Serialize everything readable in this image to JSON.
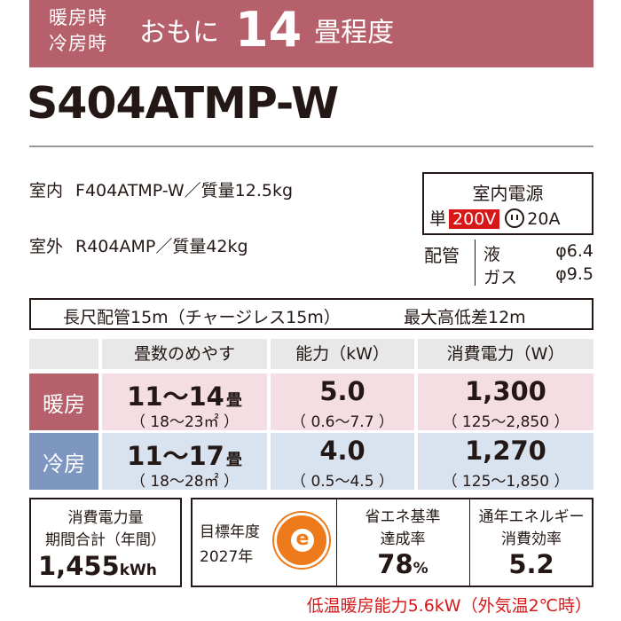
{
  "header": {
    "mode_heating": "暖房時",
    "mode_cooling": "冷房時",
    "prefix": "おもに",
    "tatami": "14",
    "suffix": "畳程度"
  },
  "model": "S404ATMP-W",
  "indoor": {
    "label": "室内",
    "value": "F404ATMP-W／質量12.5kg"
  },
  "outdoor": {
    "label": "室外",
    "value": "R404AMP／質量42kg"
  },
  "power": {
    "title": "室内電源",
    "phase": "単",
    "voltage": "200V",
    "plug_icon": "plug-icon",
    "ampere": "20A"
  },
  "piping": {
    "label": "配管",
    "liquid_label": "液",
    "liquid_value": "φ6.4",
    "gas_label": "ガス",
    "gas_value": "φ9.5"
  },
  "long_piping": {
    "text": "長尺配管15m（チャージレス15m）",
    "height": "最大高低差12m"
  },
  "table": {
    "headers": [
      "畳数のめやす",
      "能力（kW）",
      "消費電力（W）"
    ],
    "rows": [
      {
        "mode": "暖房",
        "tatami": "11～14",
        "tatami_unit": "畳",
        "tatami_area": "（ 18～23㎡ ）",
        "capacity": "5.0",
        "capacity_range": "（ 0.6～7.7 ）",
        "power": "1,300",
        "power_range": "（ 125～2,850 ）"
      },
      {
        "mode": "冷房",
        "tatami": "11～17",
        "tatami_unit": "畳",
        "tatami_area": "（ 18～28㎡ ）",
        "capacity": "4.0",
        "capacity_range": "（ 0.5～4.5 ）",
        "power": "1,270",
        "power_range": "（ 125～1,850 ）"
      }
    ]
  },
  "energy": {
    "line1": "消費電力量",
    "line2": "期間合計（年間）",
    "value": "1,455",
    "unit": "kWh"
  },
  "standard": {
    "target_label": "目標年度",
    "target_year": "2027年",
    "mark_letter": "e",
    "achieve_line1": "省エネ基準",
    "achieve_line2": "達成率",
    "achieve_value": "78",
    "achieve_unit": "%",
    "apf_line1": "通年エネルギー",
    "apf_line2": "消費効率",
    "apf_value": "5.2"
  },
  "note": "低温暖房能力5.6kW（外気温2℃時）",
  "colors": {
    "header_bg": "#b5606a",
    "heat_row": "#f4dde3",
    "cool_row": "#d9e3ef",
    "cool_head": "#7d97c0",
    "accent_red": "#d71718",
    "emark_orange": "#ed7b1c"
  }
}
